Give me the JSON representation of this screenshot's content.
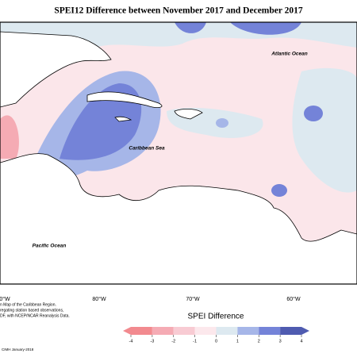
{
  "header": {
    "title": "SPEI12 Difference between November 2017 and December 2017"
  },
  "map": {
    "labels": [
      "Atlantic Ocean",
      "Caribbean Sea",
      "Pacific Ocean"
    ],
    "longitudes": [
      "0°W",
      "80°W",
      "70°W",
      "60°W"
    ]
  },
  "legend": {
    "title": "SPEI Difference",
    "ticks": [
      -4,
      -3,
      -2,
      -1,
      0,
      1,
      2,
      3,
      4
    ],
    "colors": [
      "#f28a8f",
      "#f5abb4",
      "#f8cbd3",
      "#fce8ec",
      "#dde9f0",
      "#a6b6e8",
      "#7483d8",
      "#4f5bb0"
    ]
  },
  "notes": {
    "lines": [
      "n Map of the Caribbean Region.",
      "regating station based observations,",
      "DF, with NCEP/NCAR Reanalysis Data."
    ],
    "credit": "CIMH January-2018"
  }
}
